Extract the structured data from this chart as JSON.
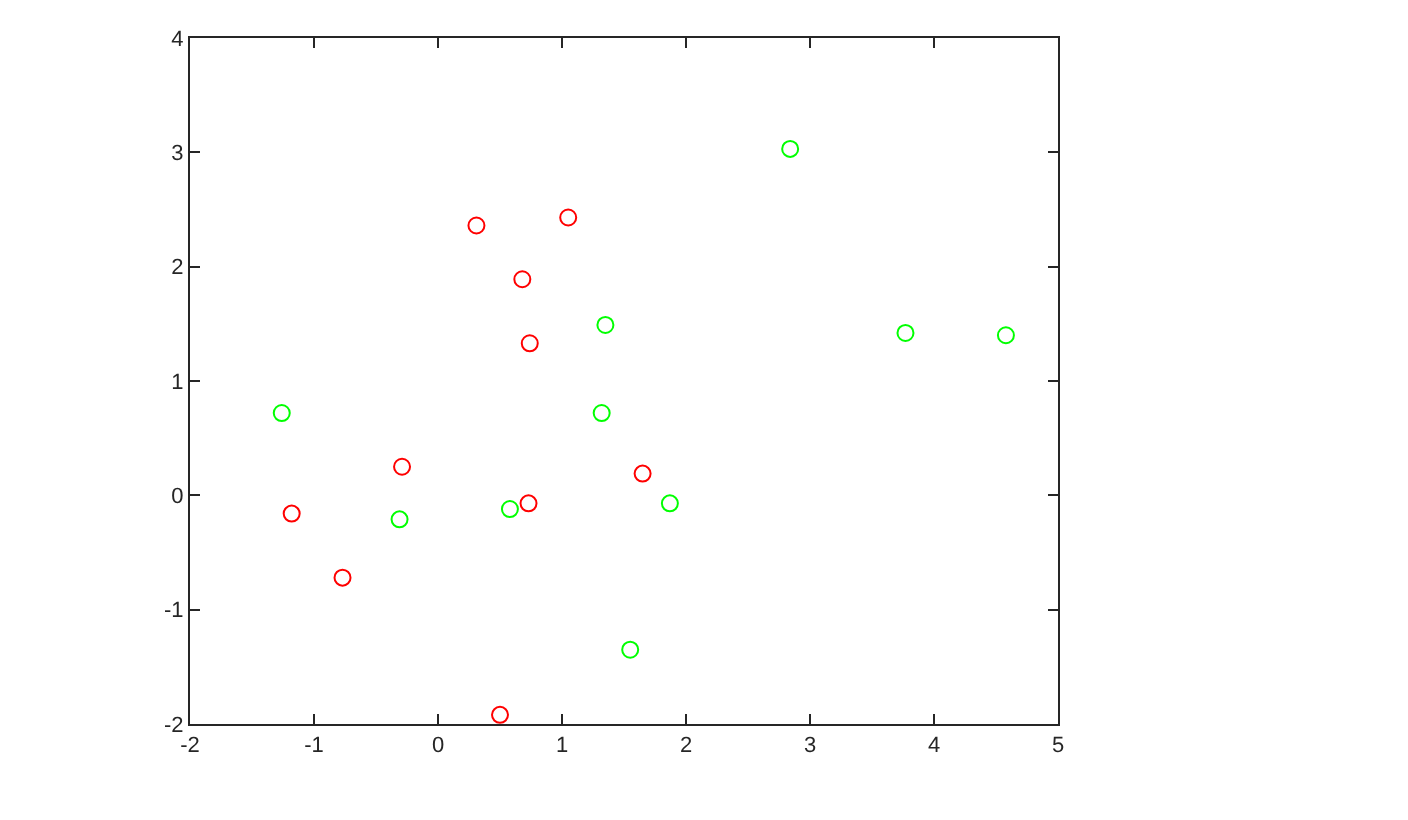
{
  "chart_data": {
    "type": "scatter",
    "marker": "circle",
    "xlim": [
      -2,
      5
    ],
    "xticks": [
      -2,
      -1,
      0,
      1,
      2,
      3,
      4,
      5
    ],
    "ylim": [
      -2,
      4
    ],
    "yticks": [
      -2,
      -1,
      0,
      1,
      2,
      3,
      4
    ],
    "series": [
      {
        "color": "#ff0000",
        "x": [
          0.31,
          1.05,
          0.68,
          0.74,
          -0.29,
          -1.18,
          -0.77,
          0.73,
          1.65,
          0.5
        ],
        "values": [
          2.36,
          2.43,
          1.89,
          1.33,
          0.25,
          -0.16,
          -0.72,
          -0.07,
          0.19,
          -1.92
        ]
      },
      {
        "color": "#00ff00",
        "x": [
          2.84,
          3.77,
          4.58,
          1.35,
          1.32,
          -1.26,
          -0.31,
          0.58,
          1.87,
          1.55
        ],
        "values": [
          3.03,
          1.42,
          1.4,
          1.49,
          0.72,
          0.72,
          -0.21,
          -0.12,
          -0.07,
          -1.35
        ]
      }
    ]
  }
}
